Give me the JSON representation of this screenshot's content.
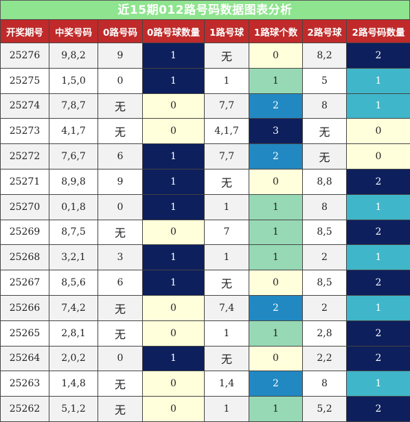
{
  "title": "近15期012路号码数据图表分析",
  "headers": [
    "开奖期号",
    "中奖号码",
    "0路号码",
    "0路号球数量",
    "1路号球",
    "1路球个数",
    "2路号球",
    "2路号码数量"
  ],
  "rows": [
    {
      "period": "25276",
      "numbers": "9,8,2",
      "road0": "9",
      "road0_count": "1",
      "road1": "无",
      "road1_count": "0",
      "road2": "8,2",
      "road2_count": "2"
    },
    {
      "period": "25275",
      "numbers": "1,5,0",
      "road0": "0",
      "road0_count": "1",
      "road1": "1",
      "road1_count": "1",
      "road2": "5",
      "road2_count": "1"
    },
    {
      "period": "25274",
      "numbers": "7,8,7",
      "road0": "无",
      "road0_count": "0",
      "road1": "7,7",
      "road1_count": "2",
      "road2": "8",
      "road2_count": "1"
    },
    {
      "period": "25273",
      "numbers": "4,1,7",
      "road0": "无",
      "road0_count": "0",
      "road1": "4,1,7",
      "road1_count": "3",
      "road2": "无",
      "road2_count": "0"
    },
    {
      "period": "25272",
      "numbers": "7,6,7",
      "road0": "6",
      "road0_count": "1",
      "road1": "7,7",
      "road1_count": "2",
      "road2": "无",
      "road2_count": "0"
    },
    {
      "period": "25271",
      "numbers": "8,9,8",
      "road0": "9",
      "road0_count": "1",
      "road1": "无",
      "road1_count": "0",
      "road2": "8,8",
      "road2_count": "2"
    },
    {
      "period": "25270",
      "numbers": "0,1,8",
      "road0": "0",
      "road0_count": "1",
      "road1": "1",
      "road1_count": "1",
      "road2": "8",
      "road2_count": "1"
    },
    {
      "period": "25269",
      "numbers": "8,7,5",
      "road0": "无",
      "road0_count": "0",
      "road1": "7",
      "road1_count": "1",
      "road2": "8,5",
      "road2_count": "2"
    },
    {
      "period": "25268",
      "numbers": "3,2,1",
      "road0": "3",
      "road0_count": "1",
      "road1": "1",
      "road1_count": "1",
      "road2": "2",
      "road2_count": "1"
    },
    {
      "period": "25267",
      "numbers": "8,5,6",
      "road0": "6",
      "road0_count": "1",
      "road1": "无",
      "road1_count": "0",
      "road2": "8,5",
      "road2_count": "2"
    },
    {
      "period": "25266",
      "numbers": "7,4,2",
      "road0": "无",
      "road0_count": "0",
      "road1": "7,4",
      "road1_count": "2",
      "road2": "2",
      "road2_count": "1"
    },
    {
      "period": "25265",
      "numbers": "2,8,1",
      "road0": "无",
      "road0_count": "0",
      "road1": "1",
      "road1_count": "1",
      "road2": "2,8",
      "road2_count": "2"
    },
    {
      "period": "25264",
      "numbers": "2,0,2",
      "road0": "0",
      "road0_count": "1",
      "road1": "无",
      "road1_count": "0",
      "road2": "2,2",
      "road2_count": "2"
    },
    {
      "period": "25263",
      "numbers": "1,4,8",
      "road0": "无",
      "road0_count": "0",
      "road1": "1,4",
      "road1_count": "2",
      "road2": "8",
      "road2_count": "1"
    },
    {
      "period": "25262",
      "numbers": "5,1,2",
      "road0": "无",
      "road0_count": "0",
      "road1": "1",
      "road1_count": "1",
      "road2": "5,2",
      "road2_count": "2"
    }
  ],
  "colors": {
    "title_bg": "#8fe48f",
    "header_bg": "#c02a2a",
    "road0_count": {
      "0": "#ffffdb",
      "1": "#0d1f5c"
    },
    "road1_count": {
      "0": "#ffffdb",
      "1": "#96d9b4",
      "2": "#2188c2",
      "3": "#0d1f5c"
    },
    "road2_count": {
      "0": "#ffffdb",
      "1": "#3fb6c9",
      "2": "#0d1f5c"
    }
  }
}
